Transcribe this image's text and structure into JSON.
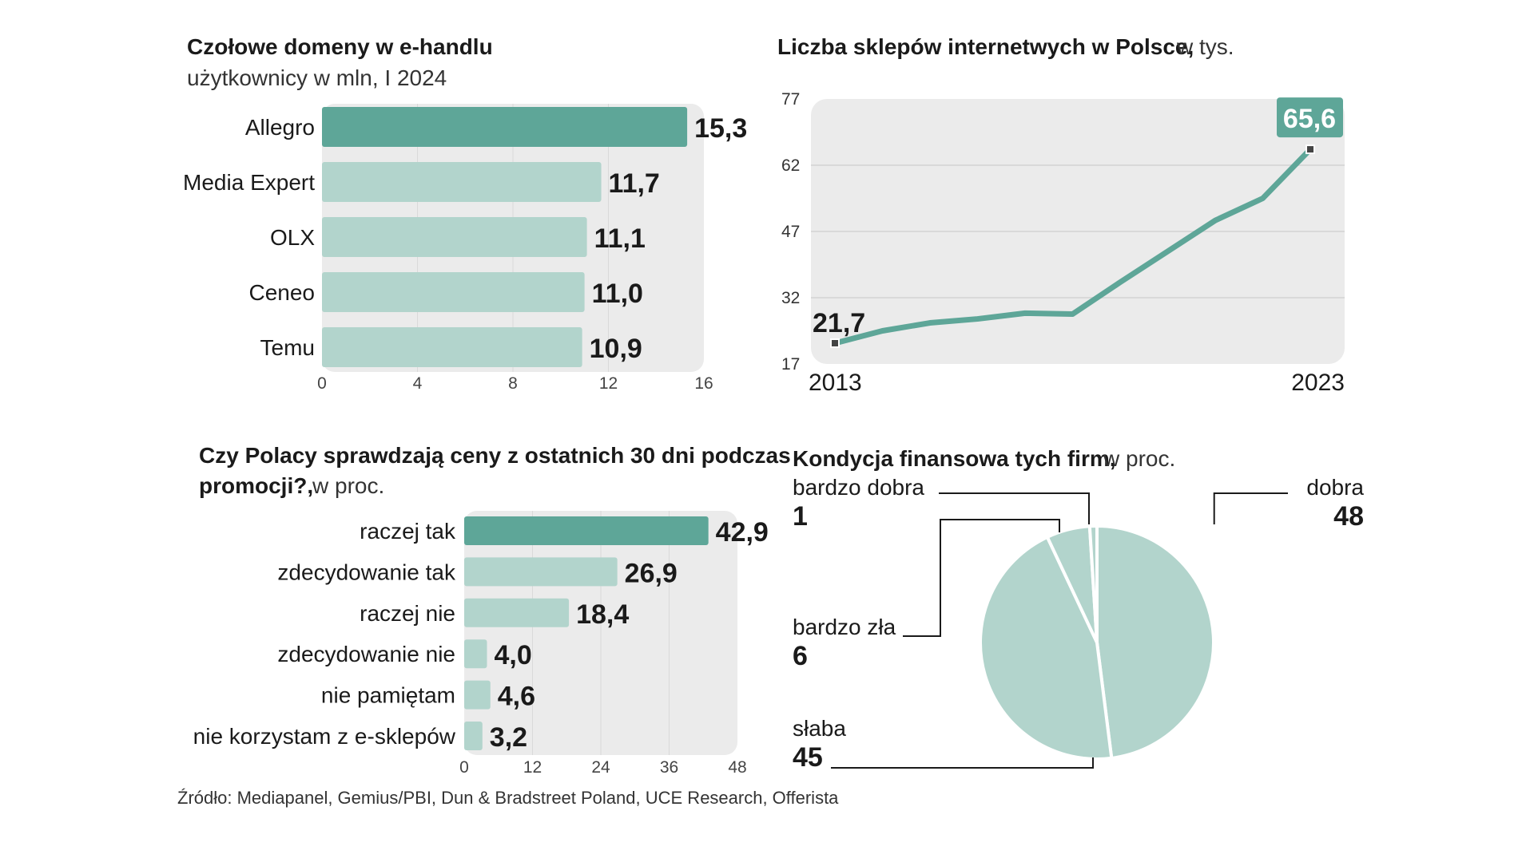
{
  "colors": {
    "accent": "#5ea698",
    "light": "#b2d4cc",
    "panel": "#ebebeb",
    "grid": "#d9d9d9"
  },
  "chart_data": [
    {
      "type": "bar",
      "orientation": "horizontal",
      "title": "Czołowe domeny w e-handlu",
      "subtitle": "użytkownicy w mln, I 2024",
      "categories": [
        "Allegro",
        "Media Expert",
        "OLX",
        "Ceneo",
        "Temu"
      ],
      "values": [
        15.3,
        11.7,
        11.1,
        11.0,
        10.9
      ],
      "value_labels": [
        "15,3",
        "11,7",
        "11,1",
        "11,0",
        "10,9"
      ],
      "xlim": [
        0,
        16
      ],
      "xticks": [
        0,
        4,
        8,
        12,
        16
      ],
      "highlight_index": 0
    },
    {
      "type": "line",
      "title": "Liczba sklepów internetwych w Polsce,",
      "subtitle": "w tys.",
      "x": [
        2013,
        2014,
        2015,
        2016,
        2017,
        2018,
        2019,
        2020,
        2021,
        2022,
        2023
      ],
      "values": [
        21.7,
        24.5,
        26.3,
        27.2,
        28.5,
        28.3,
        35.5,
        42.5,
        49.5,
        54.5,
        65.6
      ],
      "ylim": [
        17,
        77
      ],
      "yticks": [
        17,
        32,
        47,
        62,
        77
      ],
      "x_labels": [
        "2013",
        "2023"
      ],
      "start_label": "21,7",
      "end_label": "65,6",
      "grid": true
    },
    {
      "type": "bar",
      "orientation": "horizontal",
      "title": "Czy Polacy sprawdzają ceny z ostatnich 30 dni podczas",
      "title_line2": "promocji?,",
      "subtitle": "w proc.",
      "categories": [
        "raczej tak",
        "zdecydowanie tak",
        "raczej nie",
        "zdecydowanie nie",
        "nie pamiętam",
        "nie korzystam z e-sklepów"
      ],
      "values": [
        42.9,
        26.9,
        18.4,
        4.0,
        4.6,
        3.2
      ],
      "value_labels": [
        "42,9",
        "26,9",
        "18,4",
        "4,0",
        "4,6",
        "3,2"
      ],
      "xlim": [
        0,
        48
      ],
      "xticks": [
        0,
        12,
        24,
        36,
        48
      ],
      "highlight_index": 0
    },
    {
      "type": "pie",
      "title": "Kondycja finansowa tych firm,",
      "subtitle": "w proc.",
      "slices": [
        {
          "name": "dobra",
          "value": 48
        },
        {
          "name": "słaba",
          "value": 45
        },
        {
          "name": "bardzo zła",
          "value": 6
        },
        {
          "name": "bardzo dobra",
          "value": 1
        }
      ]
    }
  ],
  "source": "Źródło: Mediapanel, Gemius/PBI, Dun & Bradstreet Poland, UCE Research, Offerista"
}
